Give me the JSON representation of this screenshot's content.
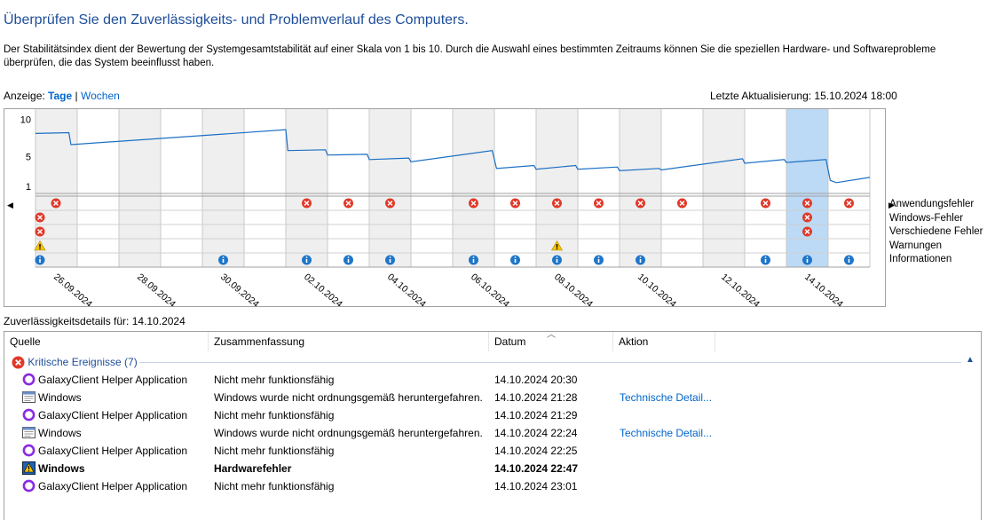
{
  "header": {
    "title": "Überprüfen Sie den Zuverlässigkeits- und Problemverlauf des Computers.",
    "description": "Der Stabilitätsindex dient der Bewertung der Systemgesamtstabilität auf einer Skala von 1 bis 10. Durch die Auswahl eines bestimmten Zeitraums können Sie die speziellen Hardware- und Softwareprobleme überprüfen, die das System beeinflusst haben."
  },
  "view": {
    "label": "Anzeige:",
    "days": "Tage",
    "separator": "|",
    "weeks": "Wochen",
    "last_update": "Letzte Aktualisierung: 15.10.2024 18:00"
  },
  "chart_data": {
    "type": "line",
    "y_ticks": [
      "10",
      "5",
      "1"
    ],
    "ylim": [
      1,
      10
    ],
    "date_labels": [
      "26.09.2024",
      "28.09.2024",
      "30.09.2024",
      "02.10.2024",
      "04.10.2024",
      "06.10.2024",
      "08.10.2024",
      "10.10.2024",
      "12.10.2024",
      "14.10.2024"
    ],
    "columns": 20,
    "selected_column": 18,
    "stability_points": [
      {
        "col": 0.0,
        "y": 8.1
      },
      {
        "col": 0.8,
        "y": 8.2
      },
      {
        "col": 0.85,
        "y": 6.6
      },
      {
        "col": 6.0,
        "y": 8.6
      },
      {
        "col": 6.05,
        "y": 5.8
      },
      {
        "col": 6.95,
        "y": 5.9
      },
      {
        "col": 7.0,
        "y": 5.2
      },
      {
        "col": 7.95,
        "y": 5.3
      },
      {
        "col": 8.0,
        "y": 4.6
      },
      {
        "col": 8.95,
        "y": 4.8
      },
      {
        "col": 9.0,
        "y": 4.3
      },
      {
        "col": 10.95,
        "y": 5.8
      },
      {
        "col": 11.05,
        "y": 3.4
      },
      {
        "col": 11.95,
        "y": 3.8
      },
      {
        "col": 12.0,
        "y": 3.3
      },
      {
        "col": 12.95,
        "y": 3.8
      },
      {
        "col": 13.0,
        "y": 3.3
      },
      {
        "col": 13.95,
        "y": 3.6
      },
      {
        "col": 14.0,
        "y": 3.1
      },
      {
        "col": 14.95,
        "y": 3.4
      },
      {
        "col": 15.0,
        "y": 3.2
      },
      {
        "col": 16.95,
        "y": 4.7
      },
      {
        "col": 17.0,
        "y": 4.1
      },
      {
        "col": 17.95,
        "y": 4.6
      },
      {
        "col": 18.0,
        "y": 4.2
      },
      {
        "col": 18.95,
        "y": 4.6
      },
      {
        "col": 19.05,
        "y": 1.8
      },
      {
        "col": 19.2,
        "y": 1.5
      },
      {
        "col": 20.0,
        "y": 2.2
      }
    ],
    "legend": [
      "Anwendungsfehler",
      "Windows-Fehler",
      "Verschiedene Fehler",
      "Warnungen",
      "Informationen"
    ],
    "events": {
      "app_errors": [
        0,
        6,
        7,
        8,
        10,
        11,
        12,
        13,
        14,
        15,
        17,
        18,
        19
      ],
      "windows_errors": [
        0,
        18
      ],
      "misc_errors": [
        0,
        18
      ],
      "warnings": [
        0,
        12
      ],
      "info": [
        0,
        4,
        6,
        7,
        8,
        10,
        11,
        12,
        13,
        14,
        17,
        18,
        19
      ]
    }
  },
  "details": {
    "label": "Zuverlässigkeitsdetails für: 14.10.2024",
    "columns": [
      "Quelle",
      "Zusammenfassung",
      "Datum",
      "Aktion"
    ],
    "group_label": "Kritische Ereignisse (7)",
    "rows": [
      {
        "icon": "galaxy-circle-icon",
        "source": "GalaxyClient Helper Application",
        "summary": "Nicht mehr funktionsfähig",
        "date": "14.10.2024 20:30",
        "action": "",
        "bold": false
      },
      {
        "icon": "windows-app-icon",
        "source": "Windows",
        "summary": "Windows wurde nicht ordnungsgemäß heruntergefahren.",
        "date": "14.10.2024 21:28",
        "action": "Technische Detail...",
        "bold": false
      },
      {
        "icon": "galaxy-circle-icon",
        "source": "GalaxyClient Helper Application",
        "summary": "Nicht mehr funktionsfähig",
        "date": "14.10.2024 21:29",
        "action": "",
        "bold": false
      },
      {
        "icon": "windows-app-icon",
        "source": "Windows",
        "summary": "Windows wurde nicht ordnungsgemäß heruntergefahren.",
        "date": "14.10.2024 22:24",
        "action": "Technische Detail...",
        "bold": false
      },
      {
        "icon": "galaxy-circle-icon",
        "source": "GalaxyClient Helper Application",
        "summary": "Nicht mehr funktionsfähig",
        "date": "14.10.2024 22:25",
        "action": "",
        "bold": false
      },
      {
        "icon": "hardware-warning-icon",
        "source": "Windows",
        "summary": "Hardwarefehler",
        "date": "14.10.2024 22:47",
        "action": "",
        "bold": true
      },
      {
        "icon": "galaxy-circle-icon",
        "source": "GalaxyClient Helper Application",
        "summary": "Nicht mehr funktionsfähig",
        "date": "14.10.2024 23:01",
        "action": "",
        "bold": false
      }
    ]
  },
  "colors": {
    "title": "#1e4e9a",
    "link": "#0066cc",
    "line": "#1b6fc4",
    "selected": "#bcdaf5",
    "weekend": "#efefef",
    "error": "#e0392a",
    "info": "#1f76c9",
    "warning": "#f5c400",
    "galaxy": "#8a2be2"
  }
}
